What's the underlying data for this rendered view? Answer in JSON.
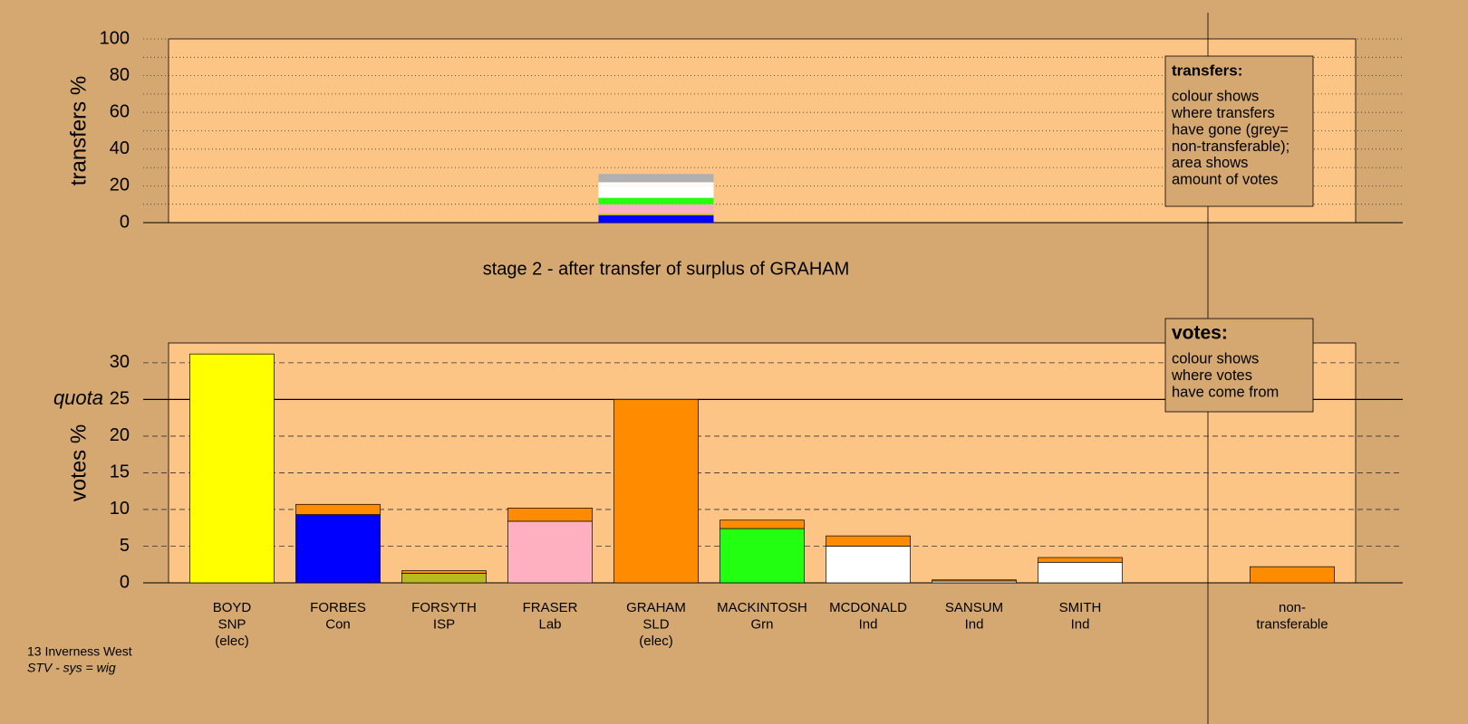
{
  "chart_data": [
    {
      "type": "stacked-bar",
      "ylabel": "transfers %",
      "ylim": [
        0,
        100
      ],
      "yticks": [
        0,
        20,
        40,
        60,
        80,
        100
      ],
      "yminorticks": [
        10,
        30,
        50,
        70,
        90
      ],
      "grid": true,
      "series": [
        {
          "color": "#0000ff",
          "values": [
            4
          ]
        },
        {
          "color": "#b8b820",
          "values": [
            0.8
          ]
        },
        {
          "color": "#ffb0c0",
          "values": [
            5.2
          ]
        },
        {
          "color": "#22ff10",
          "values": [
            3.5
          ]
        },
        {
          "color": "#ffffff",
          "values": [
            6.5
          ]
        },
        {
          "color": "#ffffff",
          "values": [
            0.5
          ]
        },
        {
          "color": "#ffffff",
          "values": [
            1.5
          ]
        },
        {
          "color": "#b0b0b0",
          "values": [
            4.5
          ]
        }
      ]
    },
    {
      "type": "stacked-bar",
      "ylabel": "votes %",
      "ylim": [
        0,
        32.7
      ],
      "yticks": [
        0,
        5,
        10,
        15,
        20,
        25,
        30
      ],
      "grid": true,
      "reference_line": {
        "value": 25,
        "label": "quota"
      },
      "categories": [
        [
          "BOYD",
          "SNP",
          "(elec)"
        ],
        [
          "FORBES",
          "Con"
        ],
        [
          "FORSYTH",
          "ISP"
        ],
        [
          "FRASER",
          "Lab"
        ],
        [
          "GRAHAM",
          "SLD",
          "(elec)"
        ],
        [
          "MACKINTOSH",
          "Grn"
        ],
        [
          "MCDONALD",
          "Ind"
        ],
        [
          "SANSUM",
          "Ind"
        ],
        [
          "SMITH",
          "Ind"
        ],
        null,
        [
          "non-",
          "transferable"
        ]
      ],
      "series": [
        {
          "colors": [
            "#ffff00",
            "#0000ff",
            "#b8b820",
            "#ffb0c0",
            "#ff8c00",
            "#22ff10",
            "#ffffff",
            "#ffffff",
            "#ffffff",
            null,
            "#ff8c00"
          ],
          "values": [
            31.2,
            9.3,
            1.3,
            8.4,
            25,
            7.4,
            5.0,
            0.25,
            2.8,
            null,
            0
          ]
        },
        {
          "color": "#ff8c00",
          "values": [
            0,
            1.4,
            0.35,
            1.8,
            0,
            1.15,
            1.4,
            0.15,
            0.65,
            null,
            2.2
          ]
        }
      ]
    }
  ],
  "stage_title": "stage 2 - after transfer of surplus of GRAHAM",
  "transfers_note": {
    "heading": "transfers:",
    "paragraphs": [
      [
        "colour shows",
        "where transfers",
        "have gone (grey=",
        "non-transferable);"
      ],
      [
        "area shows",
        "amount of votes"
      ]
    ]
  },
  "votes_note": {
    "heading": "votes:",
    "paragraphs": [
      [
        "colour shows",
        "where votes",
        "have come from"
      ]
    ]
  },
  "footer": [
    "13 Inverness West",
    "STV - sys = wig"
  ]
}
